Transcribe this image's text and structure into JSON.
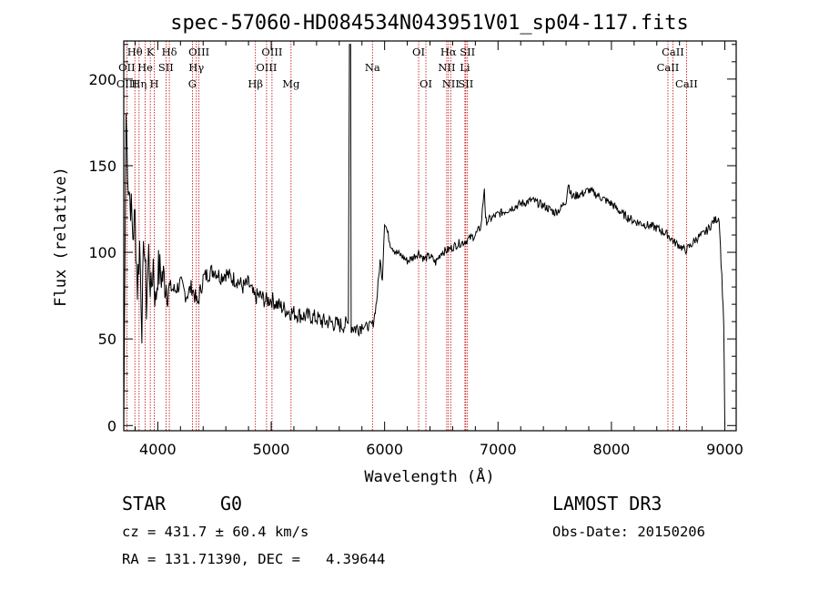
{
  "chart_data": {
    "type": "line",
    "title": "spec-57060-HD084534N043951V01_sp04-117.fits",
    "xlabel": "Wavelength (Å)",
    "ylabel": "Flux (relative)",
    "xlim": [
      3700,
      9100
    ],
    "ylim": [
      -3,
      222
    ],
    "x_ticks": [
      4000,
      5000,
      6000,
      7000,
      8000,
      9000
    ],
    "y_ticks": [
      0,
      50,
      100,
      150,
      200
    ],
    "grid": false,
    "legend": "none",
    "series": [
      {
        "x": [
          3700,
          3720,
          3740,
          3760,
          3780,
          3800,
          3820,
          3840,
          3860,
          3880,
          3900,
          3920,
          3940,
          3960,
          3980,
          4000,
          4050,
          4100,
          4150,
          4200,
          4250,
          4300,
          4350,
          4400,
          4450,
          4500,
          4550,
          4600,
          4650,
          4700,
          4750,
          4800,
          4850,
          4900,
          4950,
          5000,
          5050,
          5100,
          5150,
          5200,
          5250,
          5300,
          5350,
          5400,
          5450,
          5500,
          5550,
          5600,
          5650,
          5680,
          5690,
          5700,
          5705,
          5710,
          5720,
          5750,
          5800,
          5850,
          5900,
          5930,
          5960,
          5980,
          6000,
          6050,
          6100,
          6150,
          6200,
          6250,
          6300,
          6350,
          6400,
          6450,
          6500,
          6550,
          6600,
          6650,
          6700,
          6750,
          6800,
          6850,
          6880,
          6890,
          6900,
          6950,
          7000,
          7100,
          7200,
          7300,
          7400,
          7500,
          7550,
          7600,
          7620,
          7650,
          7700,
          7750,
          7800,
          7850,
          7900,
          8000,
          8100,
          8200,
          8300,
          8400,
          8500,
          8550,
          8600,
          8650,
          8700,
          8750,
          8800,
          8850,
          8900,
          8950,
          8990,
          9000
        ],
        "values": [
          0,
          180,
          140,
          130,
          110,
          120,
          80,
          105,
          60,
          110,
          70,
          100,
          75,
          95,
          70,
          90,
          85,
          80,
          78,
          82,
          75,
          80,
          70,
          85,
          88,
          90,
          86,
          88,
          85,
          84,
          80,
          82,
          74,
          75,
          72,
          73,
          70,
          68,
          66,
          65,
          64,
          63,
          63,
          62,
          60,
          60,
          59,
          58,
          58,
          59,
          220,
          220,
          58,
          57,
          57,
          56,
          58,
          57,
          59,
          72,
          95,
          85,
          118,
          105,
          100,
          98,
          95,
          97,
          100,
          96,
          98,
          94,
          100,
          101,
          103,
          105,
          106,
          108,
          110,
          115,
          138,
          118,
          118,
          120,
          122,
          125,
          128,
          130,
          127,
          123,
          125,
          130,
          140,
          132,
          133,
          134,
          136,
          134,
          132,
          128,
          122,
          118,
          116,
          114,
          110,
          106,
          104,
          101,
          104,
          108,
          110,
          113,
          118,
          120,
          60,
          0
        ]
      }
    ],
    "line_markers": [
      {
        "label": "Hθ",
        "x": 3798,
        "row": 0
      },
      {
        "label": "K",
        "x": 3934,
        "row": 0
      },
      {
        "label": "Hδ",
        "x": 4102,
        "row": 0
      },
      {
        "label": "OIII",
        "x": 4363,
        "row": 0
      },
      {
        "label": "OIII",
        "x": 5007,
        "row": 0
      },
      {
        "label": "OI",
        "x": 6300,
        "row": 0
      },
      {
        "label": "Hα",
        "x": 6563,
        "row": 0
      },
      {
        "label": "SII",
        "x": 6731,
        "row": 0
      },
      {
        "label": "CaII",
        "x": 8542,
        "row": 0
      },
      {
        "label": "OII",
        "x": 3727,
        "row": 1
      },
      {
        "label": "He",
        "x": 3889,
        "row": 1
      },
      {
        "label": "SII",
        "x": 4072,
        "row": 1
      },
      {
        "label": "Hγ",
        "x": 4340,
        "row": 1
      },
      {
        "label": "OIII",
        "x": 4959,
        "row": 1
      },
      {
        "label": "NII",
        "x": 6548,
        "row": 1
      },
      {
        "label": "Li",
        "x": 6708,
        "row": 1
      },
      {
        "label": "CaII",
        "x": 8498,
        "row": 1
      },
      {
        "label": "OIII",
        "x": 3727,
        "row": 2
      },
      {
        "label": "Hη",
        "x": 3835,
        "row": 2
      },
      {
        "label": "H",
        "x": 3969,
        "row": 2
      },
      {
        "label": "G",
        "x": 4305,
        "row": 2
      },
      {
        "label": "Hβ",
        "x": 4861,
        "row": 2
      },
      {
        "label": "Mg",
        "x": 5175,
        "row": 2
      },
      {
        "label": "Na",
        "x": 5893,
        "row": 1
      },
      {
        "label": "OI",
        "x": 6364,
        "row": 2
      },
      {
        "label": "NII",
        "x": 6583,
        "row": 2
      },
      {
        "label": "SII",
        "x": 6716,
        "row": 2
      },
      {
        "label": "CaII",
        "x": 8662,
        "row": 2
      }
    ],
    "marker_line_color": "#c00000"
  },
  "info": {
    "object_class": "STAR",
    "subclass": "G0",
    "survey": "LAMOST DR3",
    "redshift": "cz = 431.7 ± 60.4 km/s",
    "obs_date": "Obs-Date: 20150206",
    "coords": "RA = 131.71390, DEC =   4.39644"
  }
}
